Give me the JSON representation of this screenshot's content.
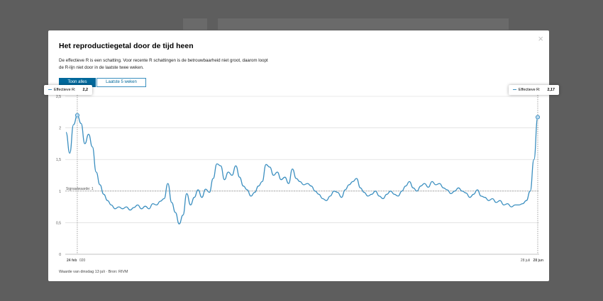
{
  "modal": {
    "title": "Het reproductiegetal door de tijd heen",
    "description": "De effectieve R is een schatting. Voor recente R schattingen is de betrouwbaarheid niet groot, daarom loopt de R-lijn niet door in de laatste twee weken.",
    "close_label": "×",
    "buttons": {
      "show_all": "Toon alles",
      "last_5_weeks": "Laatste 5 weken"
    },
    "footer": "Waarde van dinsdag 13 juli · Bron: RIVM"
  },
  "tooltips": {
    "left": {
      "label": "Effectieve R:",
      "value": "2,2"
    },
    "right": {
      "label": "Effectieve R:",
      "value": "2,17"
    }
  },
  "colors": {
    "line": "#3b8fc0",
    "button": "#01689b",
    "background": "#5e5e5e"
  },
  "chart_data": {
    "type": "line",
    "title": "Het reproductiegetal door de tijd heen",
    "ylim": [
      0,
      2.5
    ],
    "yticks": [
      "0",
      "0,5",
      "1",
      "1,5",
      "2",
      "2,5"
    ],
    "x_labels": {
      "start": "24 feb",
      "start_extra": "020",
      "end_prev": "28 juli",
      "end": "28 jun"
    },
    "reference_line": {
      "value": 1,
      "label": "Signaalwaarde: 1"
    },
    "grid": true,
    "series": [
      {
        "values": [
          1.93,
          1.6,
          2.05,
          2.2,
          2.07,
          1.75,
          1.9,
          1.7,
          1.3,
          1.1,
          0.95,
          0.85,
          0.78,
          0.72,
          0.75,
          0.72,
          0.75,
          0.7,
          0.74,
          0.78,
          0.72,
          0.76,
          0.72,
          0.8,
          0.78,
          0.84,
          0.88,
          1.12,
          0.82,
          0.66,
          0.48,
          0.62,
          0.96,
          0.78,
          0.9,
          1.02,
          0.9,
          1.03,
          0.98,
          1.2,
          1.43,
          1.4,
          1.18,
          1.3,
          1.25,
          1.4,
          1.22,
          1.08,
          1.02,
          0.92,
          0.98,
          1.08,
          1.15,
          1.42,
          1.38,
          1.25,
          1.3,
          1.18,
          1.22,
          1.12,
          1.35,
          1.2,
          1.15,
          1.1,
          1.12,
          1.08,
          1.0,
          0.95,
          0.88,
          0.85,
          0.92,
          1.0,
          0.98,
          0.9,
          1.02,
          1.1,
          1.15,
          1.2,
          1.05,
          0.98,
          0.92,
          0.95,
          1.0,
          0.92,
          0.88,
          0.95,
          1.0,
          0.95,
          0.92,
          1.0,
          1.08,
          1.15,
          1.05,
          1.0,
          1.08,
          1.12,
          1.06,
          1.15,
          1.1,
          1.12,
          1.05,
          1.02,
          0.96,
          1.0,
          1.05,
          1.0,
          0.97,
          0.9,
          0.95,
          1.02,
          0.92,
          0.9,
          0.85,
          0.88,
          0.82,
          0.85,
          0.78,
          0.8,
          0.75,
          0.78,
          0.78,
          0.8,
          0.85,
          1.0,
          1.5,
          2.17
        ]
      }
    ]
  }
}
